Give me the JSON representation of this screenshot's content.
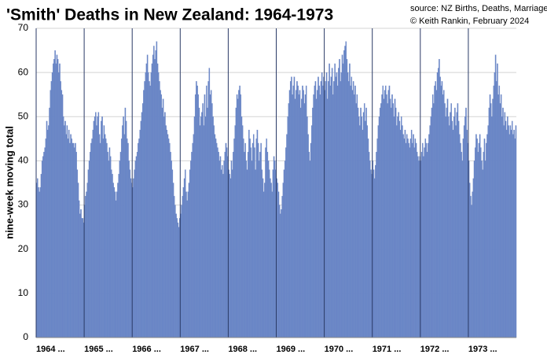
{
  "chart_data": {
    "type": "bar",
    "title": "'Smith' Deaths in New Zealand: 1964-1973",
    "annotations": [
      "source: NZ Births, Deaths, Marriages",
      "© Keith Rankin, February 2024"
    ],
    "y_label": "nine-week moving total",
    "color": "#6a86c6",
    "ylim": [
      0,
      70
    ],
    "yticks": [
      0,
      10,
      20,
      30,
      40,
      50,
      60,
      70
    ],
    "grid": true,
    "categories": [
      "1964 ...",
      null,
      null,
      null,
      null,
      null,
      null,
      null,
      null,
      null,
      null,
      null,
      null,
      null,
      null,
      null,
      null,
      null,
      null,
      null,
      null,
      null,
      null,
      null,
      null,
      null,
      null,
      null,
      null,
      null,
      null,
      null,
      null,
      null,
      null,
      null,
      null,
      null,
      null,
      null,
      null,
      null,
      null,
      null,
      null,
      null,
      null,
      null,
      null,
      null,
      null,
      null,
      "1965 ...",
      null,
      null,
      null,
      null,
      null,
      null,
      null,
      null,
      null,
      null,
      null,
      null,
      null,
      null,
      null,
      null,
      null,
      null,
      null,
      null,
      null,
      null,
      null,
      null,
      null,
      null,
      null,
      null,
      null,
      null,
      null,
      null,
      null,
      null,
      null,
      null,
      null,
      null,
      null,
      null,
      null,
      null,
      null,
      null,
      null,
      null,
      null,
      null,
      null,
      null,
      null,
      "1966 ...",
      null,
      null,
      null,
      null,
      null,
      null,
      null,
      null,
      null,
      null,
      null,
      null,
      null,
      null,
      null,
      null,
      null,
      null,
      null,
      null,
      null,
      null,
      null,
      null,
      null,
      null,
      null,
      null,
      null,
      null,
      null,
      null,
      null,
      null,
      null,
      null,
      null,
      null,
      null,
      null,
      null,
      null,
      null,
      null,
      null,
      null,
      null,
      null,
      null,
      null,
      null,
      "1967 ...",
      null,
      null,
      null,
      null,
      null,
      null,
      null,
      null,
      null,
      null,
      null,
      null,
      null,
      null,
      null,
      null,
      null,
      null,
      null,
      null,
      null,
      null,
      null,
      null,
      null,
      null,
      null,
      null,
      null,
      null,
      null,
      null,
      null,
      null,
      null,
      null,
      null,
      null,
      null,
      null,
      null,
      null,
      null,
      null,
      null,
      null,
      null,
      null,
      null,
      null,
      null,
      "1968 ...",
      null,
      null,
      null,
      null,
      null,
      null,
      null,
      null,
      null,
      null,
      null,
      null,
      null,
      null,
      null,
      null,
      null,
      null,
      null,
      null,
      null,
      null,
      null,
      null,
      null,
      null,
      null,
      null,
      null,
      null,
      null,
      null,
      null,
      null,
      null,
      null,
      null,
      null,
      null,
      null,
      null,
      null,
      null,
      null,
      null,
      null,
      null,
      null,
      null,
      null,
      null,
      "1969 ...",
      null,
      null,
      null,
      null,
      null,
      null,
      null,
      null,
      null,
      null,
      null,
      null,
      null,
      null,
      null,
      null,
      null,
      null,
      null,
      null,
      null,
      null,
      null,
      null,
      null,
      null,
      null,
      null,
      null,
      null,
      null,
      null,
      null,
      null,
      null,
      null,
      null,
      null,
      null,
      null,
      null,
      null,
      null,
      null,
      null,
      null,
      null,
      null,
      null,
      null,
      null,
      "1970 ...",
      null,
      null,
      null,
      null,
      null,
      null,
      null,
      null,
      null,
      null,
      null,
      null,
      null,
      null,
      null,
      null,
      null,
      null,
      null,
      null,
      null,
      null,
      null,
      null,
      null,
      null,
      null,
      null,
      null,
      null,
      null,
      null,
      null,
      null,
      null,
      null,
      null,
      null,
      null,
      null,
      null,
      null,
      null,
      null,
      null,
      null,
      null,
      null,
      null,
      null,
      null,
      "1971 ...",
      null,
      null,
      null,
      null,
      null,
      null,
      null,
      null,
      null,
      null,
      null,
      null,
      null,
      null,
      null,
      null,
      null,
      null,
      null,
      null,
      null,
      null,
      null,
      null,
      null,
      null,
      null,
      null,
      null,
      null,
      null,
      null,
      null,
      null,
      null,
      null,
      null,
      null,
      null,
      null,
      null,
      null,
      null,
      null,
      null,
      null,
      null,
      null,
      null,
      null,
      null,
      "1972 ...",
      null,
      null,
      null,
      null,
      null,
      null,
      null,
      null,
      null,
      null,
      null,
      null,
      null,
      null,
      null,
      null,
      null,
      null,
      null,
      null,
      null,
      null,
      null,
      null,
      null,
      null,
      null,
      null,
      null,
      null,
      null,
      null,
      null,
      null,
      null,
      null,
      null,
      null,
      null,
      null,
      null,
      null,
      null,
      null,
      null,
      null,
      null,
      null,
      null,
      null,
      null,
      "1973 ...",
      null,
      null,
      null,
      null,
      null,
      null,
      null,
      null,
      null,
      null,
      null,
      null,
      null,
      null,
      null,
      null,
      null,
      null,
      null,
      null,
      null,
      null,
      null,
      null,
      null,
      null,
      null,
      null,
      null,
      null,
      null,
      null,
      null,
      null,
      null,
      null,
      null,
      null,
      null,
      null,
      null,
      null,
      null,
      null,
      null,
      null,
      null,
      null,
      null,
      null,
      null
    ],
    "values": [
      35,
      36,
      34,
      33,
      34,
      37,
      40,
      41,
      42,
      43,
      45,
      49,
      47,
      48,
      52,
      56,
      58,
      60,
      62,
      63,
      65,
      62,
      64,
      63,
      60,
      62,
      58,
      56,
      55,
      50,
      48,
      49,
      46,
      48,
      45,
      47,
      44,
      46,
      45,
      44,
      44,
      43,
      44,
      42,
      38,
      35,
      31,
      28,
      29,
      27,
      27,
      26,
      30,
      32,
      33,
      35,
      38,
      40,
      42,
      44,
      45,
      47,
      49,
      50,
      51,
      48,
      50,
      51,
      46,
      44,
      49,
      50,
      45,
      48,
      46,
      45,
      44,
      42,
      40,
      43,
      41,
      38,
      37,
      35,
      34,
      33,
      31,
      33,
      35,
      37,
      40,
      42,
      45,
      48,
      50,
      46,
      52,
      49,
      45,
      44,
      40,
      38,
      36,
      35,
      34,
      36,
      38,
      40,
      41,
      42,
      44,
      45,
      47,
      49,
      51,
      53,
      56,
      58,
      60,
      62,
      64,
      60,
      58,
      57,
      60,
      62,
      64,
      66,
      63,
      65,
      67,
      62,
      60,
      58,
      56,
      55,
      52,
      54,
      50,
      51,
      48,
      47,
      46,
      45,
      44,
      42,
      40,
      38,
      35,
      32,
      30,
      28,
      27,
      26,
      25,
      27,
      28,
      30,
      32,
      34,
      36,
      38,
      33,
      31,
      33,
      35,
      38,
      40,
      42,
      44,
      46,
      50,
      55,
      58,
      57,
      55,
      52,
      48,
      50,
      51,
      53,
      48,
      55,
      50,
      57,
      52,
      58,
      61,
      55,
      56,
      53,
      50,
      48,
      46,
      45,
      44,
      43,
      42,
      40,
      41,
      38,
      39,
      37,
      40,
      42,
      44,
      43,
      41,
      38,
      37,
      36,
      40,
      38,
      42,
      45,
      48,
      52,
      55,
      54,
      56,
      57,
      55,
      50,
      48,
      45,
      42,
      44,
      40,
      38,
      42,
      47,
      45,
      43,
      40,
      44,
      46,
      43,
      38,
      45,
      47,
      44,
      40,
      42,
      44,
      38,
      36,
      33,
      35,
      43,
      45,
      42,
      40,
      38,
      36,
      35,
      33,
      38,
      41,
      40,
      38,
      36,
      35,
      33,
      30,
      28,
      29,
      32,
      35,
      38,
      40,
      43,
      46,
      50,
      53,
      56,
      58,
      59,
      55,
      57,
      59,
      54,
      56,
      58,
      57,
      55,
      56,
      52,
      54,
      57,
      56,
      53,
      55,
      57,
      50,
      46,
      42,
      40,
      44,
      48,
      52,
      55,
      57,
      58,
      54,
      56,
      59,
      57,
      55,
      58,
      60,
      57,
      59,
      56,
      58,
      60,
      54,
      58,
      62,
      57,
      59,
      61,
      55,
      58,
      62,
      59,
      60,
      57,
      61,
      63,
      58,
      60,
      64,
      62,
      65,
      66,
      67,
      63,
      60,
      58,
      62,
      57,
      59,
      56,
      58,
      55,
      57,
      53,
      55,
      52,
      50,
      48,
      52,
      50,
      47,
      51,
      53,
      49,
      52,
      48,
      45,
      42,
      40,
      38,
      37,
      40,
      38,
      36,
      39,
      42,
      45,
      48,
      50,
      52,
      53,
      55,
      57,
      54,
      56,
      57,
      55,
      53,
      56,
      57,
      54,
      52,
      55,
      53,
      50,
      54,
      52,
      48,
      50,
      51,
      49,
      47,
      50,
      48,
      46,
      45,
      47,
      44,
      46,
      45,
      44,
      43,
      45,
      47,
      44,
      46,
      43,
      45,
      44,
      42,
      41,
      40,
      41,
      40,
      42,
      44,
      41,
      43,
      45,
      44,
      42,
      44,
      46,
      48,
      50,
      52,
      55,
      53,
      57,
      58,
      56,
      60,
      61,
      63,
      59,
      57,
      58,
      55,
      56,
      53,
      50,
      52,
      54,
      50,
      48,
      51,
      53,
      49,
      47,
      50,
      52,
      48,
      51,
      53,
      49,
      46,
      44,
      42,
      40,
      45,
      48,
      50,
      52,
      47,
      44,
      40,
      35,
      32,
      30,
      33,
      36,
      40,
      43,
      46,
      45,
      42,
      44,
      46,
      43,
      40,
      38,
      42,
      45,
      40,
      44,
      46,
      48,
      52,
      55,
      53,
      50,
      54,
      57,
      60,
      64,
      58,
      62,
      55,
      57,
      53,
      55,
      50,
      52,
      48,
      51,
      49,
      47,
      50,
      48,
      46,
      48,
      47,
      49,
      46,
      47,
      45,
      48
    ]
  }
}
